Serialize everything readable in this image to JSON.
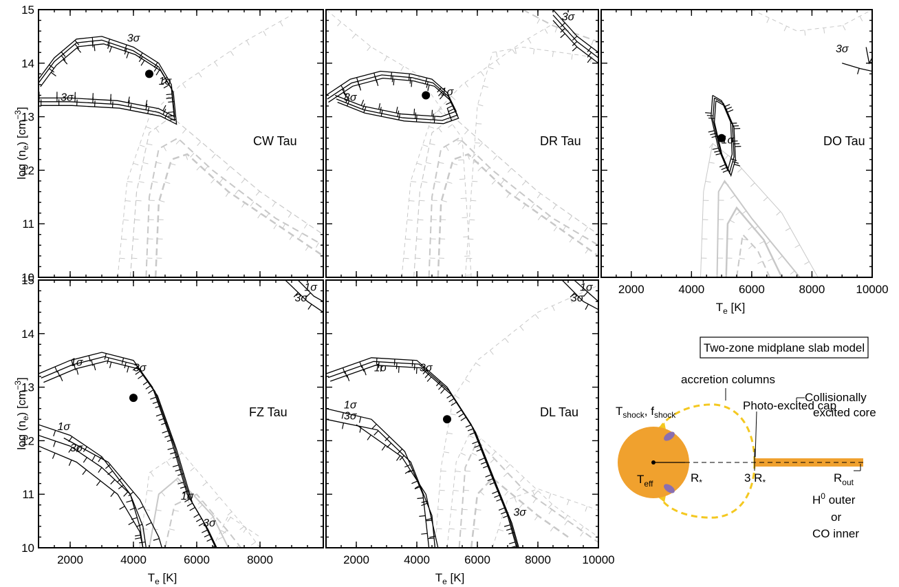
{
  "chart_data": [
    {
      "type": "contour",
      "panel": "CW Tau",
      "xlim": [
        1000,
        10000
      ],
      "ylim": [
        10,
        15
      ],
      "ylabel": "log (n_e) [cm^-3]",
      "point": {
        "x": 4500,
        "y": 13.8
      },
      "sigma_labels": [
        {
          "text": "3σ",
          "x": 4000,
          "y": 14.4
        },
        {
          "text": "3σ",
          "x": 1900,
          "y": 13.3
        },
        {
          "text": "1σ",
          "x": 5000,
          "y": 13.6
        }
      ]
    },
    {
      "type": "contour",
      "panel": "DR Tau",
      "xlim": [
        1000,
        10000
      ],
      "ylim": [
        10,
        15
      ],
      "point": {
        "x": 4300,
        "y": 13.4
      },
      "sigma_labels": [
        {
          "text": "3σ",
          "x": 1800,
          "y": 13.3
        },
        {
          "text": "1σ",
          "x": 5000,
          "y": 13.4
        },
        {
          "text": "3σ",
          "x": 9000,
          "y": 14.8
        }
      ]
    },
    {
      "type": "contour",
      "panel": "DO Tau",
      "xlim": [
        1000,
        10000
      ],
      "ylim": [
        10,
        15
      ],
      "xlabel": "T_e [K]",
      "point": {
        "x": 5000,
        "y": 12.6
      },
      "sigma_labels": [
        {
          "text": "3σ",
          "x": 9000,
          "y": 14.2
        },
        {
          "text": "1σ",
          "x": 5200,
          "y": 12.5
        }
      ]
    },
    {
      "type": "contour",
      "panel": "FZ Tau",
      "xlim": [
        1000,
        10000
      ],
      "ylim": [
        10,
        15
      ],
      "xlabel": "T_e [K]",
      "ylabel": "log (n_e) [cm^-3]",
      "point": {
        "x": 4000,
        "y": 12.8
      },
      "sigma_labels": [
        {
          "text": "1σ",
          "x": 2200,
          "y": 13.4
        },
        {
          "text": "3σ",
          "x": 4200,
          "y": 13.3
        },
        {
          "text": "1σ",
          "x": 1800,
          "y": 12.2
        },
        {
          "text": "3σ",
          "x": 2200,
          "y": 11.8
        },
        {
          "text": "1σ",
          "x": 9600,
          "y": 14.8
        },
        {
          "text": "3σ",
          "x": 9300,
          "y": 14.6
        },
        {
          "text": "1σ",
          "x": 5700,
          "y": 10.9
        },
        {
          "text": "3σ",
          "x": 6400,
          "y": 10.4
        }
      ]
    },
    {
      "type": "contour",
      "panel": "DL Tau",
      "xlim": [
        1000,
        10000
      ],
      "ylim": [
        10,
        15
      ],
      "xlabel": "T_e [K]",
      "point": {
        "x": 5000,
        "y": 12.4
      },
      "sigma_labels": [
        {
          "text": "1σ",
          "x": 2800,
          "y": 13.3
        },
        {
          "text": "3σ",
          "x": 4300,
          "y": 13.3
        },
        {
          "text": "1σ",
          "x": 1800,
          "y": 12.6
        },
        {
          "text": "3σ",
          "x": 1800,
          "y": 12.4
        },
        {
          "text": "1σ",
          "x": 9600,
          "y": 14.8
        },
        {
          "text": "3σ",
          "x": 9300,
          "y": 14.6
        },
        {
          "text": "3σ",
          "x": 7400,
          "y": 10.6
        }
      ]
    }
  ],
  "xticks": [
    "2000",
    "4000",
    "6000",
    "8000",
    "10000"
  ],
  "xticks_left": [
    "2000",
    "4000",
    "6000",
    "8000"
  ],
  "yticks": [
    "10",
    "11",
    "12",
    "13",
    "14",
    "15"
  ],
  "axis_labels": {
    "y_main": "log (n",
    "y_sub": "e",
    "y_tail": ") [cm",
    "y_exp": "−3",
    "y_end": "]",
    "x_main": "T",
    "x_sub": "e",
    "x_tail": " [K]"
  },
  "diagram": {
    "title": "Two-zone midplane slab model",
    "accretion": "accretion columns",
    "tshock": "T",
    "tshock_sub": "shock",
    "fshock": "f",
    "fshock_sub": "shock",
    "photo": "Photo-excited cap",
    "coll1": "Collisionally",
    "coll2": "excited core",
    "teff": "T",
    "teff_sub": "eff",
    "rstar": "R",
    "rstar_sub": "*",
    "three_r": "3 R",
    "three_r_sub": "*",
    "rout": "R",
    "rout_sub": "out",
    "h0": "H",
    "h0_sup": "0",
    "h0_tail": " outer",
    "or": "or",
    "co": "CO inner",
    "colors": {
      "star": "#F0A12E",
      "spot": "#8A6FB0",
      "column": "#F4C820",
      "disk": "#F0A12E"
    }
  }
}
